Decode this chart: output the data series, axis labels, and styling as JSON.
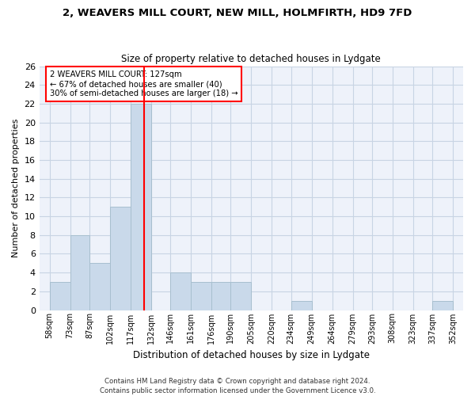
{
  "title1": "2, WEAVERS MILL COURT, NEW MILL, HOLMFIRTH, HD9 7FD",
  "title2": "Size of property relative to detached houses in Lydgate",
  "xlabel": "Distribution of detached houses by size in Lydgate",
  "ylabel": "Number of detached properties",
  "bar_values": [
    3,
    8,
    5,
    11,
    22,
    0,
    4,
    3,
    3,
    3,
    0,
    0,
    1,
    0,
    0,
    0,
    0,
    0,
    0,
    1
  ],
  "bin_labels": [
    "58sqm",
    "73sqm",
    "87sqm",
    "102sqm",
    "117sqm",
    "132sqm",
    "146sqm",
    "161sqm",
    "176sqm",
    "190sqm",
    "205sqm",
    "220sqm",
    "234sqm",
    "249sqm",
    "264sqm",
    "279sqm",
    "293sqm",
    "308sqm",
    "323sqm",
    "337sqm",
    "352sqm"
  ],
  "bar_color": "#c9d9ea",
  "bar_edge_color": "#a8bfcf",
  "grid_color": "#c8d4e4",
  "bg_color": "#eef2fa",
  "vline_x": 127,
  "vline_color": "red",
  "annotation_text": "2 WEAVERS MILL COURT: 127sqm\n← 67% of detached houses are smaller (40)\n30% of semi-detached houses are larger (18) →",
  "annotation_box_color": "white",
  "annotation_box_edge": "red",
  "ylim": [
    0,
    26
  ],
  "yticks": [
    0,
    2,
    4,
    6,
    8,
    10,
    12,
    14,
    16,
    18,
    20,
    22,
    24,
    26
  ],
  "footer": "Contains HM Land Registry data © Crown copyright and database right 2024.\nContains public sector information licensed under the Government Licence v3.0.",
  "bin_edges": [
    58,
    73,
    87,
    102,
    117,
    132,
    146,
    161,
    176,
    190,
    205,
    220,
    234,
    249,
    264,
    279,
    293,
    308,
    323,
    337,
    352
  ]
}
